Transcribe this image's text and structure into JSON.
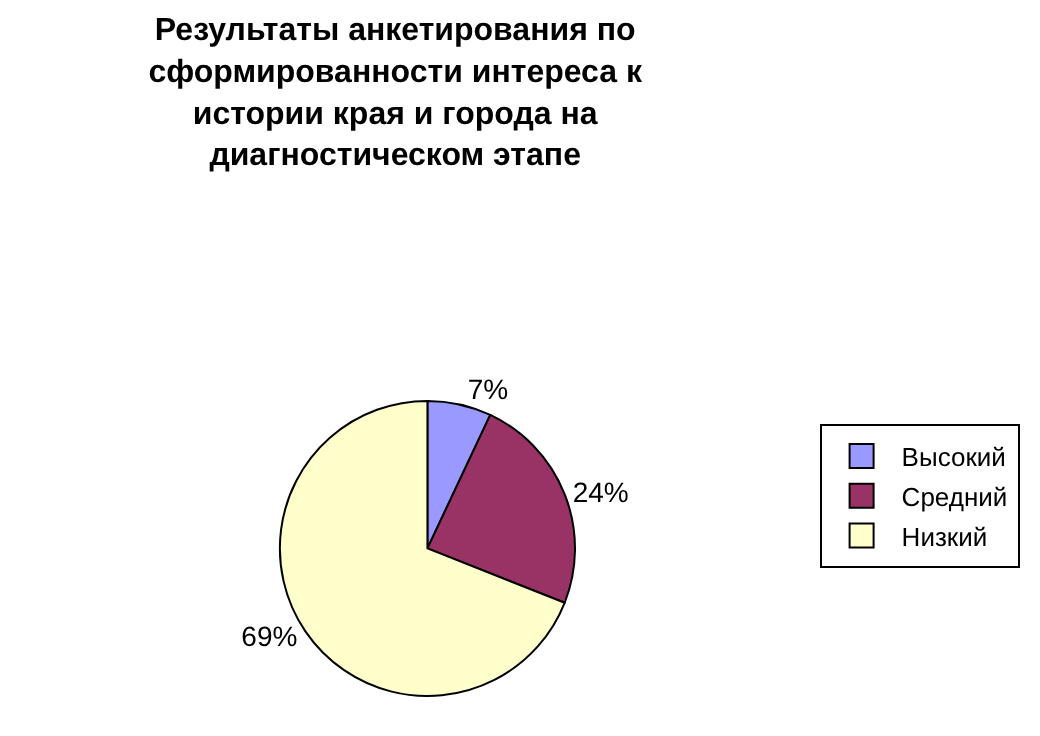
{
  "chart_data": {
    "type": "pie",
    "title": "Результаты анкетирования по\nсформированности интереса к\nистории края и города на\nдиагностическом этапе",
    "categories": [
      "Высокий",
      "Средний",
      "Низкий"
    ],
    "values": [
      7,
      24,
      69
    ],
    "value_labels": [
      "7%",
      "24%",
      "69%"
    ],
    "colors": [
      "#9999ff",
      "#993366",
      "#ffffcc"
    ],
    "legend": "right"
  }
}
